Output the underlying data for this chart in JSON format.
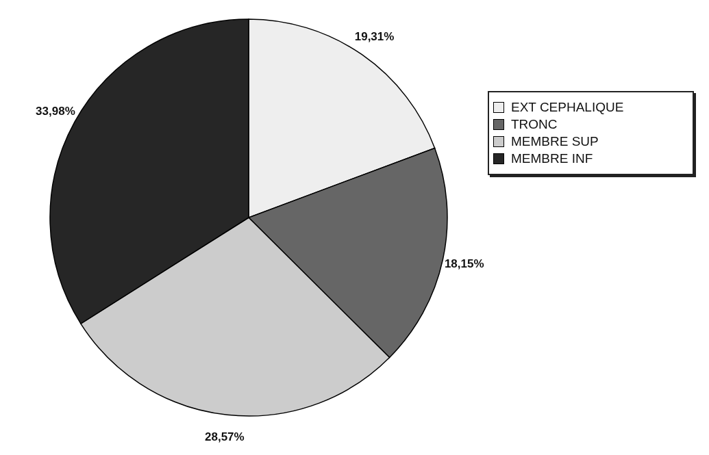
{
  "chart_data": {
    "type": "pie",
    "categories": [
      "EXT CEPHALIQUE",
      "TRONC",
      "MEMBRE SUP",
      "MEMBRE INF"
    ],
    "values": [
      19.31,
      18.15,
      28.57,
      33.98
    ],
    "colors": [
      "#eeeeee",
      "#666666",
      "#cccccc",
      "#262626"
    ],
    "value_labels": [
      "19,31%",
      "18,15%",
      "28,57%",
      "33,98%"
    ],
    "legend": "right"
  }
}
